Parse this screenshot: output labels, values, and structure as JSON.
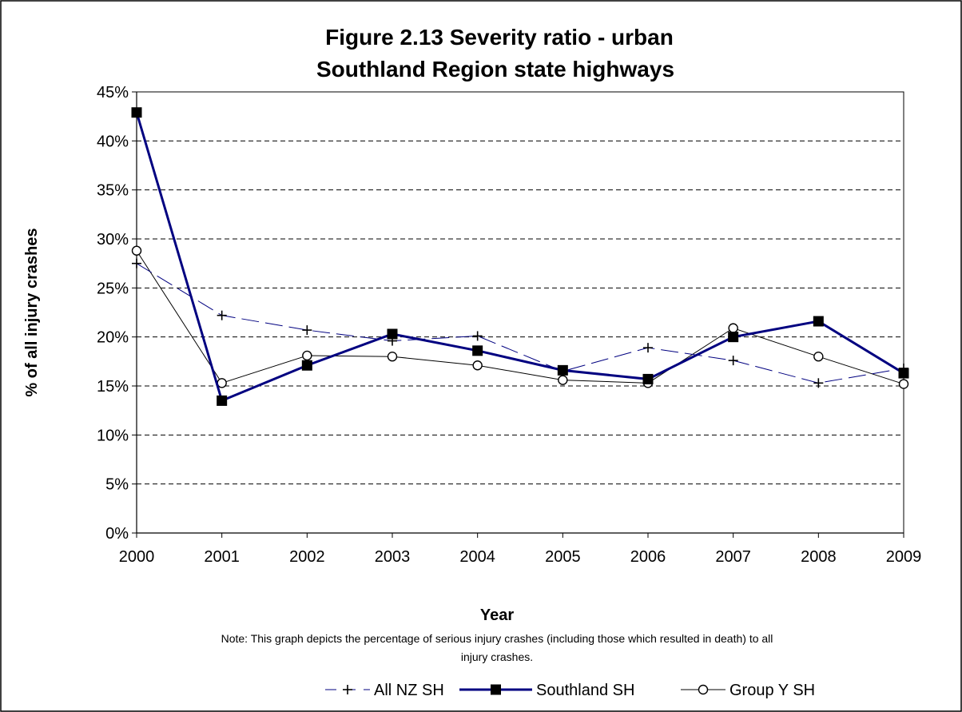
{
  "chart_data": {
    "type": "line",
    "title_line1": "Figure 2.13 Severity ratio - urban",
    "title_line2": "Southland Region state highways",
    "xlabel": "Year",
    "ylabel": "% of all injury crashes",
    "note_line1": "Note: This graph depicts the percentage of serious injury crashes (including those which resulted in death) to all",
    "note_line2": "injury crashes.",
    "ylim": [
      0,
      45
    ],
    "y_tick_step": 5,
    "y_ticks": [
      "0%",
      "5%",
      "10%",
      "15%",
      "20%",
      "25%",
      "30%",
      "35%",
      "40%",
      "45%"
    ],
    "categories": [
      "2000",
      "2001",
      "2002",
      "2003",
      "2004",
      "2005",
      "2006",
      "2007",
      "2008",
      "2009"
    ],
    "grid": "horizontal-dashed",
    "legend_position": "bottom",
    "series": [
      {
        "name": "All NZ SH",
        "marker": "plus",
        "line": "dashed",
        "color": "#000080",
        "values": [
          27.5,
          22.2,
          20.7,
          19.6,
          20.1,
          16.5,
          18.9,
          17.6,
          15.3,
          16.8
        ]
      },
      {
        "name": "Southland SH",
        "marker": "square",
        "line": "solid-thick",
        "color": "#000080",
        "values": [
          42.9,
          13.5,
          17.1,
          20.3,
          18.6,
          16.6,
          15.7,
          20.0,
          21.6,
          16.3
        ]
      },
      {
        "name": "Group Y SH",
        "marker": "circle",
        "line": "solid-thin",
        "color": "#000000",
        "values": [
          28.8,
          15.3,
          18.1,
          18.0,
          17.1,
          15.6,
          15.3,
          20.9,
          18.0,
          15.2
        ]
      }
    ]
  }
}
